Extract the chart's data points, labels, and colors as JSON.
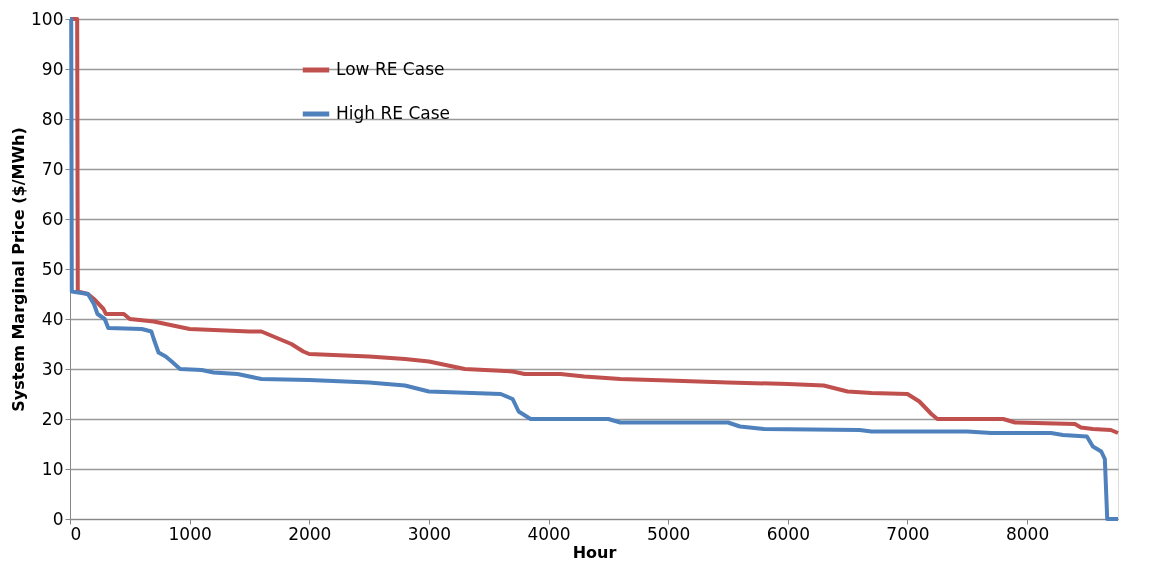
{
  "chart_data": {
    "type": "step",
    "xlabel": "Hour",
    "ylabel": "System Marginal  Price ($/MWh)",
    "xlim": [
      0,
      8760
    ],
    "xticks": [
      0,
      1000,
      2000,
      3000,
      4000,
      5000,
      6000,
      7000,
      8000
    ],
    "ylim": [
      0,
      100
    ],
    "yticks": [
      0,
      10,
      20,
      30,
      40,
      50,
      60,
      70,
      80,
      90,
      100
    ],
    "grid": "y",
    "legend": "top",
    "line_style": "solid",
    "series": [
      {
        "name": "Low RE Case",
        "color": "#c0504d",
        "x": [
          0,
          60,
          65,
          150,
          200,
          280,
          300,
          450,
          500,
          700,
          800,
          900,
          1000,
          1500,
          1600,
          1750,
          1850,
          1950,
          2000,
          2500,
          2800,
          3000,
          3200,
          3300,
          3700,
          3800,
          4100,
          4300,
          4600,
          5000,
          5500,
          6000,
          6300,
          6500,
          6700,
          7000,
          7100,
          7200,
          7250,
          7800,
          7900,
          8400,
          8450,
          8550,
          8700,
          8760
        ],
        "values": [
          100,
          100,
          45.5,
          45,
          44,
          42,
          41,
          41,
          40,
          39.5,
          39,
          38.5,
          38,
          37.5,
          37.5,
          36,
          35,
          33.5,
          33,
          32.5,
          32,
          31.5,
          30.5,
          30,
          29.5,
          29,
          29,
          28.5,
          28,
          27.7,
          27.3,
          27,
          26.7,
          25.5,
          25.2,
          25,
          23.5,
          21,
          20,
          20,
          19.3,
          19,
          18.3,
          18,
          17.8,
          17.2
        ]
      },
      {
        "name": "High RE Case",
        "color": "#4f81bd",
        "x": [
          0,
          10,
          15,
          150,
          200,
          230,
          290,
          320,
          600,
          680,
          700,
          740,
          800,
          850,
          920,
          1100,
          1200,
          1400,
          1600,
          2000,
          2500,
          2800,
          3000,
          3600,
          3700,
          3750,
          3850,
          4500,
          4600,
          5500,
          5600,
          5800,
          6600,
          6700,
          7500,
          7700,
          8200,
          8300,
          8500,
          8550,
          8620,
          8650,
          8670,
          8760
        ],
        "values": [
          100,
          100,
          45.5,
          45,
          43,
          41,
          40,
          38.2,
          38,
          37.5,
          36,
          33.3,
          32.5,
          31.5,
          30,
          29.8,
          29.3,
          29,
          28,
          27.8,
          27.3,
          26.7,
          25.5,
          25,
          24,
          21.5,
          20,
          20,
          19.3,
          19.3,
          18.5,
          18,
          17.8,
          17.5,
          17.5,
          17.2,
          17.2,
          16.8,
          16.5,
          14.5,
          13.5,
          12,
          0,
          0
        ]
      }
    ]
  }
}
